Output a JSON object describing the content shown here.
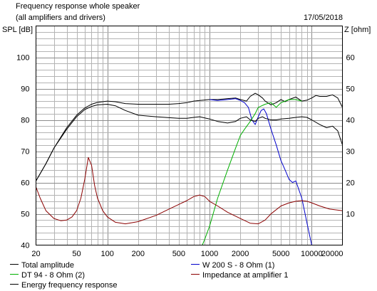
{
  "chart_data": {
    "type": "line",
    "title": "Frequency response whole speaker",
    "subtitle": "(all amplifiers and drivers)",
    "date": "17/05/2018",
    "ylabel_left": "SPL [dB]",
    "ylabel_right": "Z [ohm]",
    "x_scale": "log",
    "xlim": [
      20,
      20000
    ],
    "ylim_left": [
      40,
      110
    ],
    "ylim_right": [
      0,
      70
    ],
    "x_ticks": [
      20,
      50,
      100,
      200,
      500,
      1000,
      2000,
      5000,
      10000,
      20000
    ],
    "x_tick_labels": [
      "20",
      "50",
      "100",
      "200",
      "500",
      "1000",
      "2000",
      "5000",
      "10000",
      "20000"
    ],
    "y_ticks_left": [
      40,
      50,
      60,
      70,
      80,
      90,
      100
    ],
    "y_ticks_right": [
      10,
      20,
      30,
      40,
      50,
      60
    ],
    "grid": true,
    "legend_position": "bottom",
    "series": [
      {
        "name": "Total amplitude",
        "color": "#000000",
        "axis": "left",
        "x": [
          20,
          25,
          30,
          40,
          50,
          60,
          70,
          80,
          100,
          120,
          150,
          200,
          300,
          400,
          500,
          600,
          700,
          800,
          1000,
          1200,
          1500,
          1800,
          2000,
          2300,
          2500,
          2800,
          3000,
          3300,
          3500,
          4000,
          4500,
          5000,
          5500,
          6000,
          7000,
          8000,
          9000,
          10000,
          11000,
          12000,
          14000,
          16000,
          18000,
          20000
        ],
        "values": [
          60.5,
          66,
          71,
          77.5,
          81.5,
          83.8,
          85,
          85.6,
          86,
          85.8,
          85.2,
          85,
          85,
          85,
          85.2,
          85.5,
          86,
          86.2,
          86.5,
          86.5,
          86.8,
          87,
          86.5,
          86,
          87.5,
          88.5,
          88,
          87,
          86,
          84.8,
          85.5,
          86.5,
          85.8,
          86.5,
          87.3,
          86,
          86.3,
          87,
          87.8,
          87.5,
          87.5,
          88,
          87,
          84
        ]
      },
      {
        "name": "W 200 S - 8 Ohm (1)",
        "color": "#0000cc",
        "axis": "left",
        "x": [
          1000,
          1200,
          1500,
          1800,
          2000,
          2200,
          2400,
          2600,
          2800,
          3000,
          3200,
          3400,
          3600,
          4000,
          4500,
          5000,
          5500,
          6000,
          6500,
          7000,
          8000,
          9000,
          10000,
          11000,
          12000,
          15000,
          20000
        ],
        "values": [
          86.5,
          86.2,
          86.5,
          86.8,
          86.2,
          85.5,
          84,
          80,
          78.5,
          81,
          83,
          83.5,
          82,
          77,
          72,
          67,
          64,
          61,
          60,
          60.5,
          55,
          47,
          40,
          40,
          40,
          40,
          40
        ]
      },
      {
        "name": "DT 94 - 8 Ohm (2)",
        "color": "#00b000",
        "axis": "left",
        "x": [
          20,
          850,
          900,
          1000,
          1200,
          1500,
          1800,
          2000,
          2200,
          2500,
          2800,
          3000,
          3500,
          4000,
          4500,
          5000,
          5500,
          6000,
          7000,
          8000
        ],
        "values": [
          40,
          40,
          42,
          46,
          55,
          64,
          71,
          75,
          77,
          79.5,
          82,
          84,
          85,
          85.5,
          84,
          85.5,
          86,
          86.5,
          86.5,
          86
        ]
      },
      {
        "name": "Energy frequency response",
        "color": "#000000",
        "axis": "left",
        "x": [
          20,
          25,
          30,
          40,
          50,
          60,
          70,
          80,
          100,
          120,
          150,
          200,
          300,
          400,
          500,
          600,
          700,
          800,
          1000,
          1200,
          1500,
          1800,
          2000,
          2300,
          2500,
          2800,
          3000,
          3300,
          3500,
          4000,
          4500,
          5000,
          6000,
          7000,
          8000,
          9000,
          10000,
          12000,
          14000,
          16000,
          18000,
          20000
        ],
        "values": [
          60.5,
          66,
          71,
          77,
          81,
          83.3,
          84.3,
          84.8,
          85,
          84.5,
          83,
          81.5,
          81,
          80.7,
          80.5,
          80.5,
          80.8,
          81,
          80.3,
          79.5,
          79,
          79.5,
          80.5,
          81,
          80,
          79.5,
          80.5,
          81,
          80.5,
          80,
          80,
          80.3,
          80.5,
          80.8,
          81,
          80.8,
          80,
          78.5,
          77.5,
          78,
          76.5,
          72
        ]
      },
      {
        "name": "Impedance at amplifier 1",
        "color": "#8b0000",
        "axis": "right",
        "x": [
          20,
          22,
          25,
          30,
          35,
          40,
          45,
          50,
          55,
          60,
          65,
          70,
          75,
          80,
          90,
          100,
          120,
          150,
          200,
          300,
          400,
          500,
          600,
          700,
          800,
          900,
          1000,
          1200,
          1500,
          2000,
          2500,
          3000,
          3500,
          4000,
          5000,
          6000,
          7000,
          8000,
          9000,
          10000,
          12000,
          15000,
          20000
        ],
        "values": [
          18.5,
          15,
          11,
          8.5,
          7.8,
          8,
          9,
          11,
          15,
          21,
          28,
          25.5,
          19,
          15,
          11,
          9,
          7.3,
          6.8,
          7.5,
          9.5,
          11.5,
          13,
          14.2,
          15.5,
          16,
          15.5,
          14,
          12.5,
          10.5,
          8.5,
          7,
          6.8,
          8,
          10,
          12.5,
          13.5,
          14,
          14.2,
          14,
          13.5,
          12.5,
          11.5,
          11
        ]
      }
    ]
  }
}
